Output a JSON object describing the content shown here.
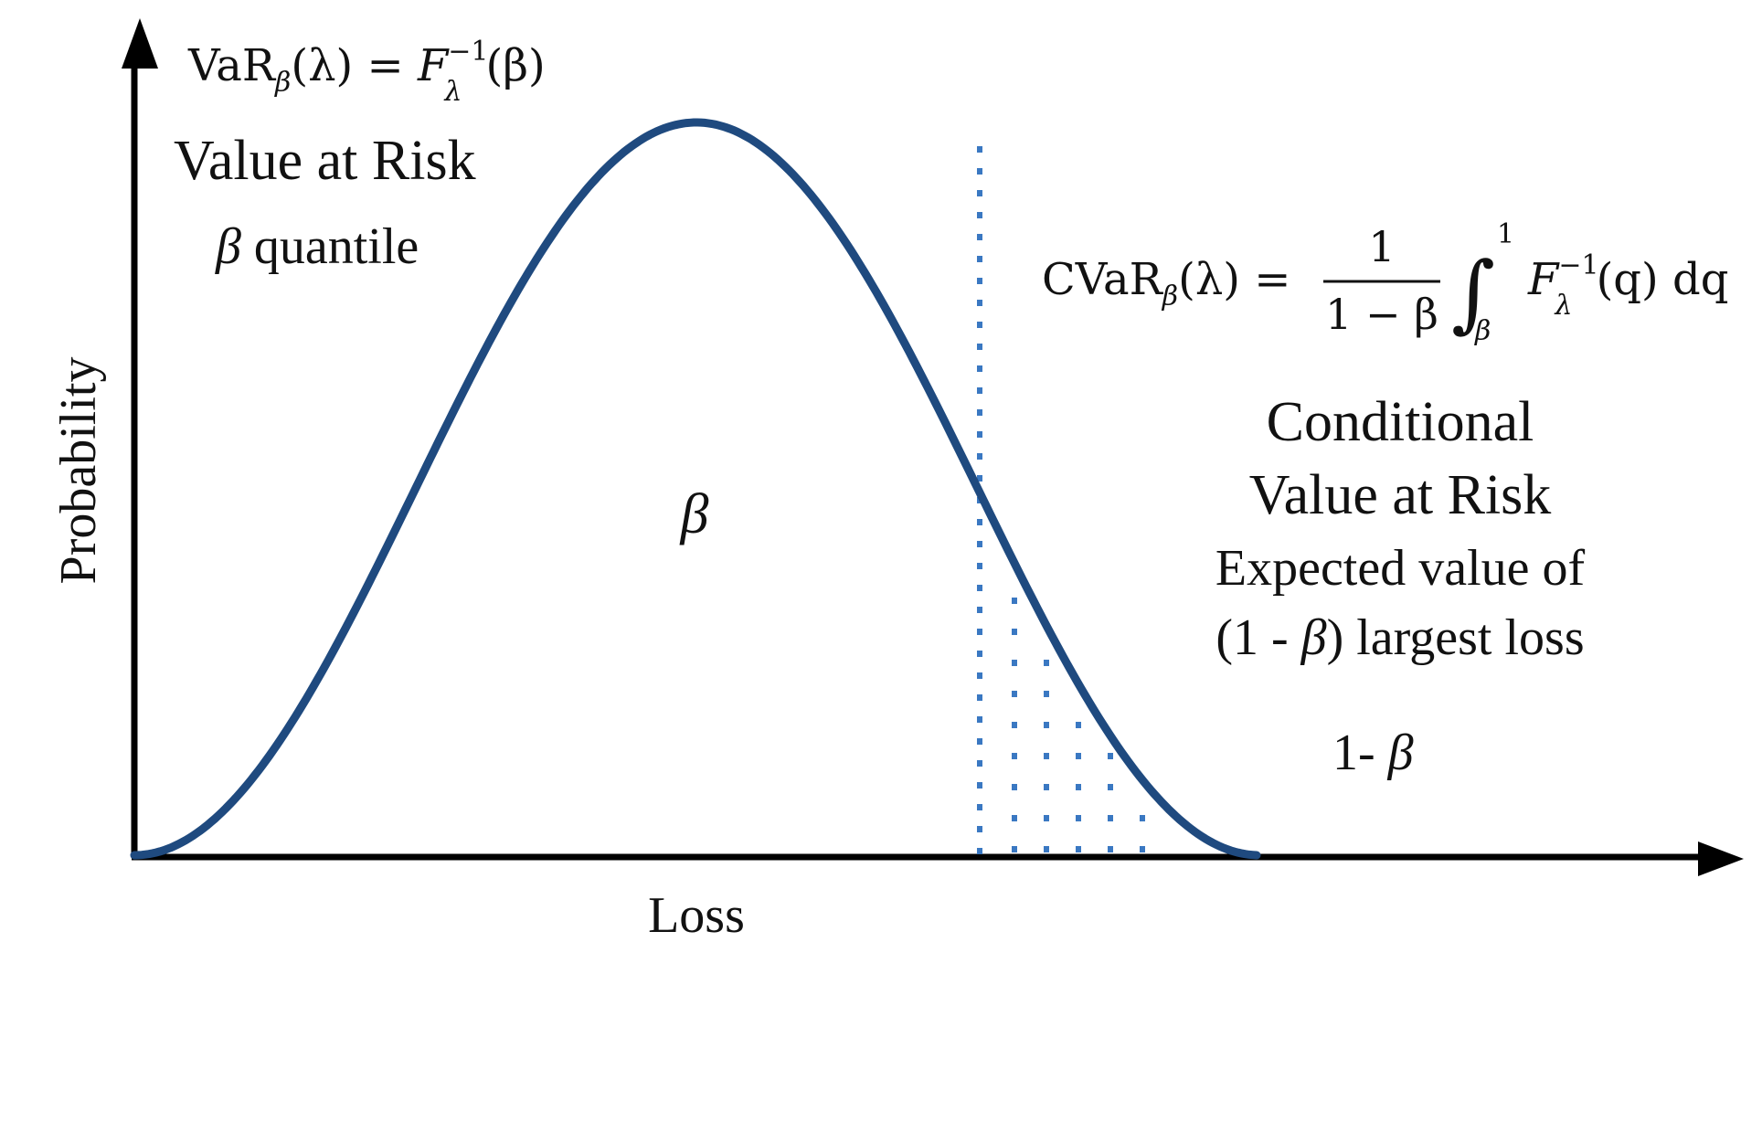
{
  "axes": {
    "y_label": "Probability",
    "x_label": "Loss"
  },
  "var_block": {
    "formula": {
      "base": "VaR",
      "sub": "β",
      "mid": "(λ) = ",
      "fn": "F",
      "fn_sup": "−1",
      "fn_sub": "λ",
      "tail": "(β)"
    },
    "title": "Value at Risk",
    "subtitle_symbol": "β",
    "subtitle": " quantile"
  },
  "cvar_block": {
    "formula": {
      "base": "CVaR",
      "sub": "β",
      "mid": "(λ) =",
      "frac_num": "1",
      "frac_den": "1 − β",
      "integral": "∫",
      "int_upper": "1",
      "int_lower": "β",
      "fn": "F",
      "fn_sup": "−1",
      "fn_sub": "λ",
      "tail": "(q) dq"
    },
    "title_line1": "Conditional",
    "title_line2": "Value at Risk",
    "desc_line1": "Expected value of",
    "desc_line2_a": "(1 - ",
    "desc_line2_sym": "β",
    "desc_line2_b": ") largest loss"
  },
  "area_labels": {
    "body": "β",
    "tail_a": "1- ",
    "tail_sym": "β"
  },
  "colors": {
    "curve": "#1f4a7f",
    "tail_dots": "#3a78c2",
    "axis": "#000000"
  }
}
